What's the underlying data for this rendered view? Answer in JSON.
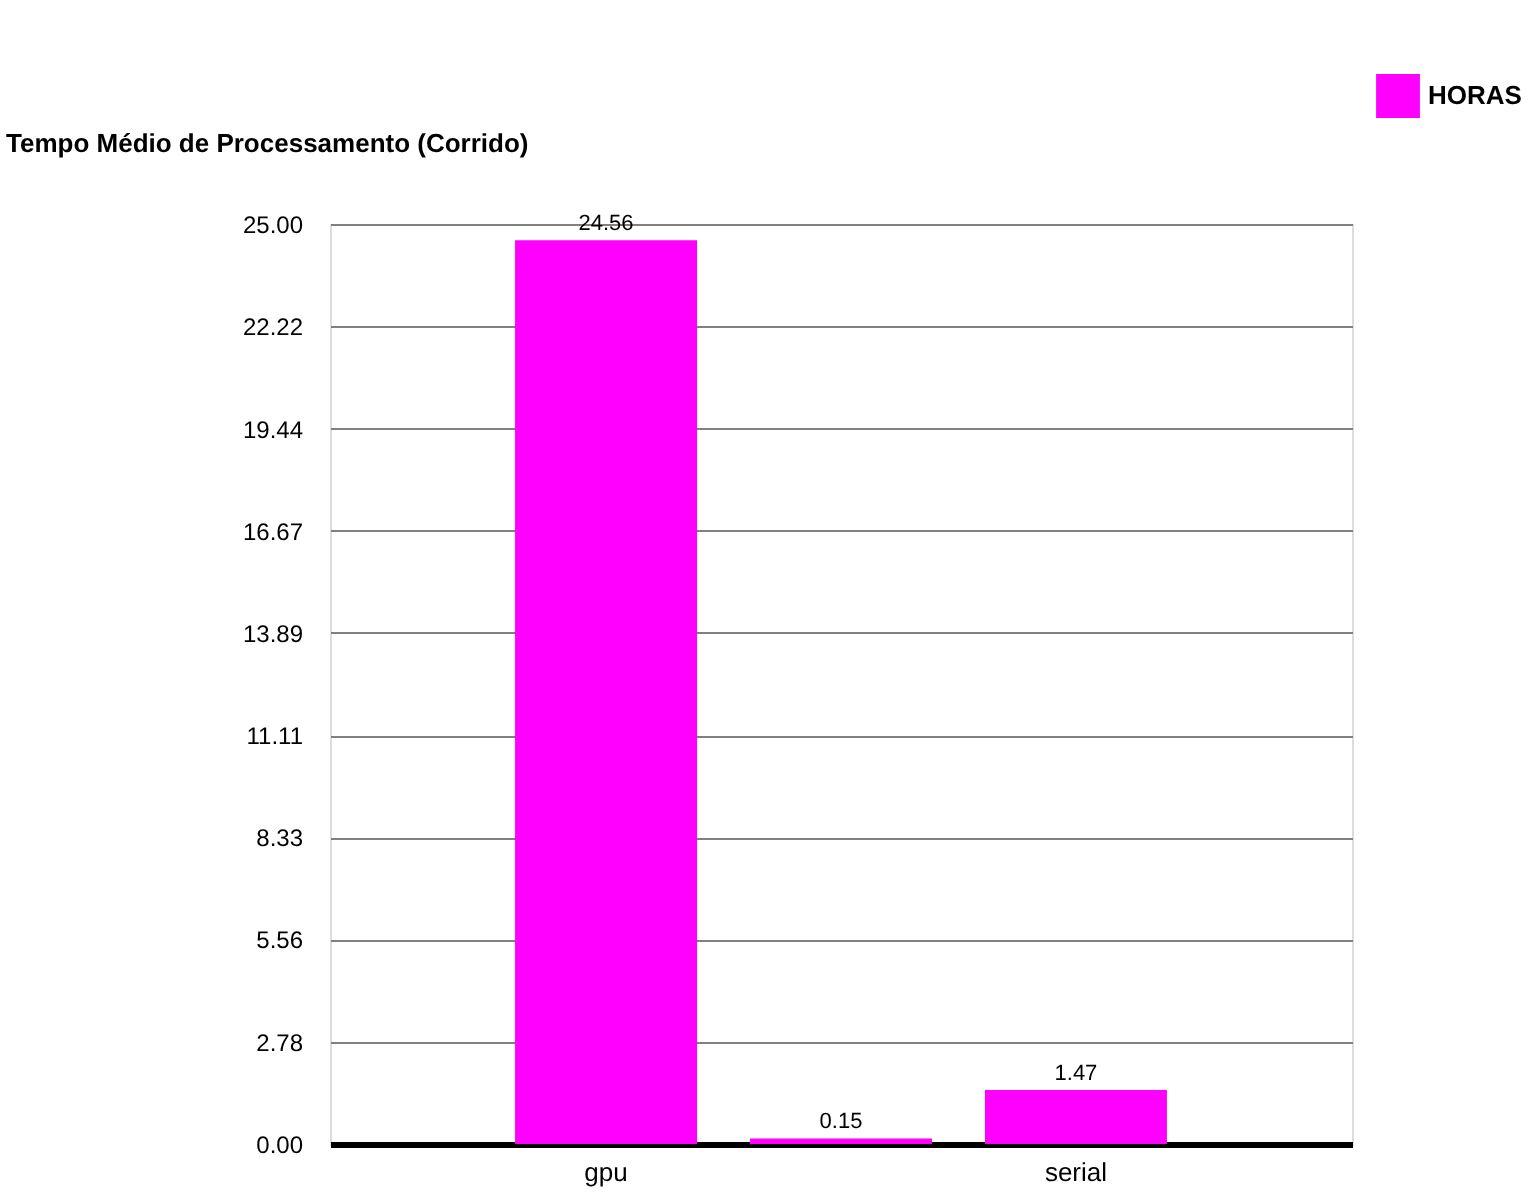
{
  "chart_data": {
    "type": "bar",
    "title": "Tempo Médio de Processamento (Corrido)",
    "categories": [
      "gpu",
      null,
      "serial"
    ],
    "series": [
      {
        "name": "HORAS",
        "color": "#ff00ff",
        "values": [
          24.56,
          0.15,
          1.47
        ]
      }
    ],
    "ylim": [
      0,
      25
    ],
    "yticks": [
      {
        "value": 0,
        "label": "0.00"
      },
      {
        "value": 2.78,
        "label": "2.78"
      },
      {
        "value": 5.56,
        "label": "5.56"
      },
      {
        "value": 8.33,
        "label": "8.33"
      },
      {
        "value": 11.11,
        "label": "11.11"
      },
      {
        "value": 13.89,
        "label": "13.89"
      },
      {
        "value": 16.67,
        "label": "16.67"
      },
      {
        "value": 19.44,
        "label": "19.44"
      },
      {
        "value": 22.22,
        "label": "22.22"
      },
      {
        "value": 25,
        "label": "25.00"
      }
    ],
    "grid": "y",
    "legend": "top right",
    "data_labels": true
  }
}
